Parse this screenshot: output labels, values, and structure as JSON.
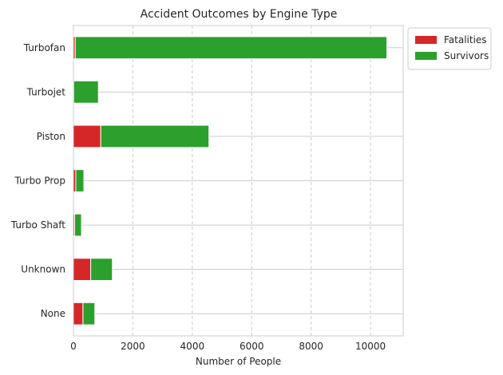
{
  "chart_data": {
    "type": "bar",
    "orientation": "horizontal",
    "stacked": true,
    "title": "Accident Outcomes by Engine Type",
    "xlabel": "Number of People",
    "ylabel": "",
    "xlim": [
      0,
      11100
    ],
    "xticks": [
      0,
      2000,
      4000,
      6000,
      8000,
      10000
    ],
    "grid": "x-dashed",
    "legend_position": "outside-top-right",
    "categories": [
      "Turbofan",
      "Turbojet",
      "Piston",
      "Turbo Prop",
      "Turbo Shaft",
      "Unknown",
      "None"
    ],
    "series": [
      {
        "name": "Fatalities",
        "color": "#d62728",
        "values": [
          60,
          10,
          920,
          80,
          40,
          580,
          320
        ]
      },
      {
        "name": "Survivors",
        "color": "#2ca02c",
        "values": [
          10490,
          830,
          3640,
          270,
          230,
          730,
          400
        ]
      }
    ]
  }
}
